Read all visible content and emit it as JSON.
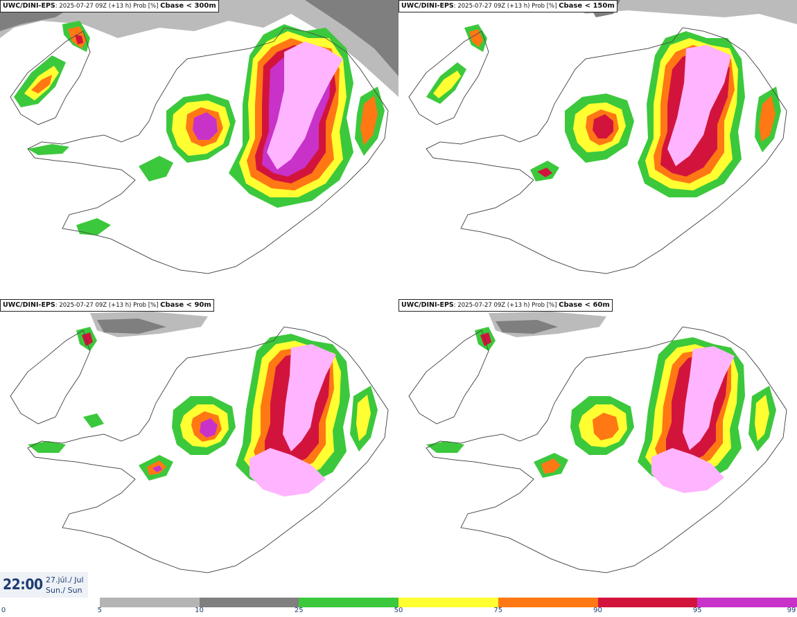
{
  "panels": [
    {
      "id": "p300",
      "model": "UWC/DINI-EPS",
      "run": "2025-07-27 09Z (+13 h) Prob [%]",
      "variable": "Cbase < 300m"
    },
    {
      "id": "p150",
      "model": "UWC/DINI-EPS",
      "run": "2025-07-27 09Z (+13 h) Prob [%]",
      "variable": "Cbase < 150m"
    },
    {
      "id": "p90",
      "model": "UWC/DINI-EPS",
      "run": "2025-07-27 09Z (+13 h) Prob [%]",
      "variable": "Cbase < 90m"
    },
    {
      "id": "p60",
      "model": "UWC/DINI-EPS",
      "run": "2025-07-27 09Z (+13 h) Prob [%]",
      "variable": "Cbase < 60m"
    }
  ],
  "valid_time": {
    "time": "22:00",
    "date_line1": "27.júl./ Jul",
    "date_line2": "Sun./ Sun"
  },
  "legend": {
    "ticks": [
      "0",
      "5",
      "10",
      "25",
      "50",
      "75",
      "90",
      "95",
      "99"
    ],
    "colors": [
      "#ffffff",
      "#b4b4b4",
      "#7f7f7f",
      "#3cc83c",
      "#ffff32",
      "#ff7814",
      "#d2143c",
      "#c832c8",
      "#ffb4ff"
    ]
  }
}
